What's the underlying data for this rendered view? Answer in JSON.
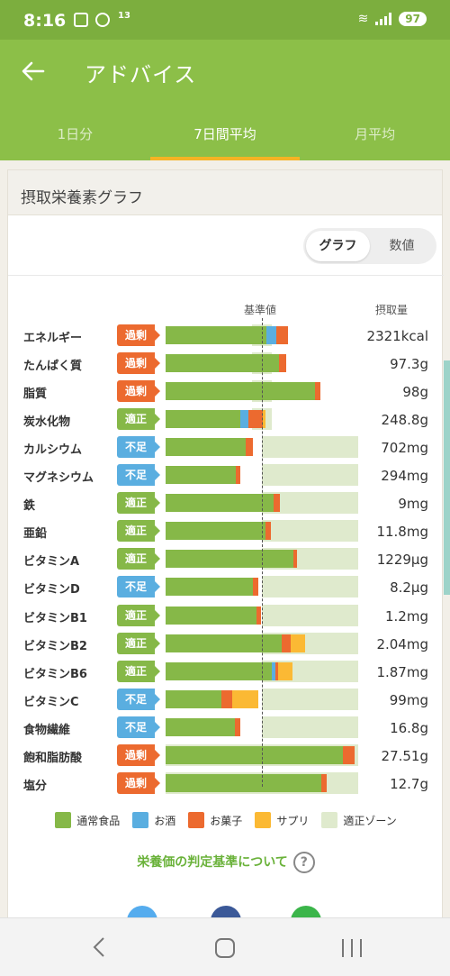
{
  "status": {
    "time": "8:16",
    "ring_label": "13",
    "battery": "97",
    "wifi_glyph": "≋"
  },
  "appbar": {
    "title": "アドバイス"
  },
  "tabs": [
    {
      "label": "1日分"
    },
    {
      "label": "7日間平均"
    },
    {
      "label": "月平均"
    }
  ],
  "card": {
    "title": "摂取栄養素グラフ"
  },
  "toggle": {
    "graph": "グラフ",
    "numbers": "数値"
  },
  "columns": {
    "baseline": "基準値",
    "intake": "摂取量"
  },
  "judgements": {
    "over": "過剰",
    "ok": "適正",
    "low": "不足"
  },
  "colors": {
    "food": "#86b848",
    "alcohol": "#5aaee0",
    "snack": "#ec6a2f",
    "supplement": "#fbb934",
    "zone": "#dfeacd"
  },
  "chart_data": {
    "type": "bar",
    "baseline_value": 100,
    "scale_note": "values are percent of baseline, stacked by source",
    "rows": [
      {
        "name": "エネルギー",
        "status": "over",
        "amount": "2321kcal",
        "food": 105,
        "alcohol": 10,
        "snack": 12,
        "supplement": 0,
        "zone": [
          90,
          110
        ]
      },
      {
        "name": "たんぱく質",
        "status": "over",
        "amount": "97.3g",
        "food": 118,
        "alcohol": 0,
        "snack": 7,
        "supplement": 0,
        "zone": [
          90,
          110
        ]
      },
      {
        "name": "脂質",
        "status": "over",
        "amount": "98g",
        "food": 155,
        "alcohol": 0,
        "snack": 6,
        "supplement": 0,
        "zone": [
          90,
          110
        ]
      },
      {
        "name": "炭水化物",
        "status": "ok",
        "amount": "248.8g",
        "food": 78,
        "alcohol": 8,
        "snack": 15,
        "supplement": 3,
        "zone": [
          90,
          110
        ]
      },
      {
        "name": "カルシウム",
        "status": "low",
        "amount": "702mg",
        "food": 83,
        "alcohol": 0,
        "snack": 8,
        "supplement": 0,
        "zone": [
          100,
          200
        ]
      },
      {
        "name": "マグネシウム",
        "status": "low",
        "amount": "294mg",
        "food": 73,
        "alcohol": 0,
        "snack": 5,
        "supplement": 0,
        "zone": [
          100,
          200
        ]
      },
      {
        "name": "鉄",
        "status": "ok",
        "amount": "9mg",
        "food": 112,
        "alcohol": 0,
        "snack": 7,
        "supplement": 0,
        "zone": [
          100,
          200
        ]
      },
      {
        "name": "亜鉛",
        "status": "ok",
        "amount": "11.8mg",
        "food": 104,
        "alcohol": 0,
        "snack": 5,
        "supplement": 0,
        "zone": [
          100,
          200
        ]
      },
      {
        "name": "ビタミンA",
        "status": "ok",
        "amount": "1229μg",
        "food": 133,
        "alcohol": 0,
        "snack": 3,
        "supplement": 0,
        "zone": [
          100,
          200
        ]
      },
      {
        "name": "ビタミンD",
        "status": "low",
        "amount": "8.2μg",
        "food": 91,
        "alcohol": 0,
        "snack": 5,
        "supplement": 0,
        "zone": [
          100,
          200
        ]
      },
      {
        "name": "ビタミンB1",
        "status": "ok",
        "amount": "1.2mg",
        "food": 94,
        "alcohol": 0,
        "snack": 5,
        "supplement": 0,
        "zone": [
          100,
          200
        ]
      },
      {
        "name": "ビタミンB2",
        "status": "ok",
        "amount": "2.04mg",
        "food": 121,
        "alcohol": 0,
        "snack": 9,
        "supplement": 15,
        "zone": [
          100,
          200
        ]
      },
      {
        "name": "ビタミンB6",
        "status": "ok",
        "amount": "1.87mg",
        "food": 110,
        "alcohol": 4,
        "snack": 3,
        "supplement": 15,
        "zone": [
          100,
          200
        ]
      },
      {
        "name": "ビタミンC",
        "status": "low",
        "amount": "99mg",
        "food": 58,
        "alcohol": 0,
        "snack": 11,
        "supplement": 27,
        "zone": [
          100,
          200
        ]
      },
      {
        "name": "食物繊維",
        "status": "low",
        "amount": "16.8g",
        "food": 72,
        "alcohol": 0,
        "snack": 6,
        "supplement": 0,
        "zone": [
          100,
          200
        ]
      },
      {
        "name": "飽和脂肪酸",
        "status": "over",
        "amount": "27.51g",
        "food": 184,
        "alcohol": 0,
        "snack": 12,
        "supplement": 0,
        "zone": [
          0,
          200
        ]
      },
      {
        "name": "塩分",
        "status": "over",
        "amount": "12.7g",
        "food": 162,
        "alcohol": 0,
        "snack": 5,
        "supplement": 0,
        "zone": [
          0,
          200
        ]
      }
    ]
  },
  "legend": [
    {
      "label": "通常食品",
      "color": "#86b848"
    },
    {
      "label": "お酒",
      "color": "#5aaee0"
    },
    {
      "label": "お菓子",
      "color": "#ec6a2f"
    },
    {
      "label": "サプリ",
      "color": "#fbb934"
    },
    {
      "label": "適正ゾーン",
      "color": "#dfeacd"
    }
  ],
  "criteria_link": "栄養価の判定基準について",
  "share": [
    {
      "name": "twitter",
      "color": "#55acee"
    },
    {
      "name": "facebook",
      "color": "#3b5998"
    },
    {
      "name": "line",
      "color": "#3bb54a"
    }
  ]
}
